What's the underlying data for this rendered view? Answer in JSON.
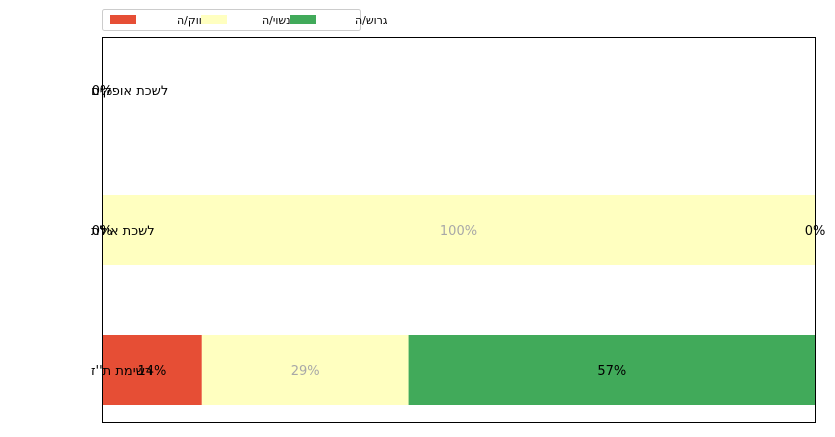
{
  "chart_data": {
    "type": "bar",
    "orientation": "horizontal",
    "stacked": true,
    "normalized": true,
    "categories": [
      "רשימת ת''ז",
      "לשכת אילת",
      "לשכת אופקים"
    ],
    "series": [
      {
        "name": "רווק/ה",
        "color": "#e64e35",
        "label_color": "#000000",
        "values": [
          14,
          0,
          0
        ]
      },
      {
        "name": "נשוי/ה",
        "color": "#ffffc0",
        "label_color": "#a8a8a8",
        "values": [
          29,
          100,
          0
        ]
      },
      {
        "name": "גרוש/ה",
        "color": "#41aa5a",
        "label_color": "#000000",
        "values": [
          57,
          0,
          0
        ]
      }
    ],
    "data_labels": [
      [
        "14%",
        "29%",
        "57%"
      ],
      [
        "0%",
        "100%",
        "0%"
      ],
      [
        "0%"
      ]
    ],
    "xlim": [
      0,
      100
    ],
    "grid": false,
    "x_ticks_visible": false,
    "legend": {
      "placement": "top-left, above plot",
      "entries": [
        "רווק/ה",
        "נשוי/ה",
        "גרוש/ה"
      ]
    }
  }
}
